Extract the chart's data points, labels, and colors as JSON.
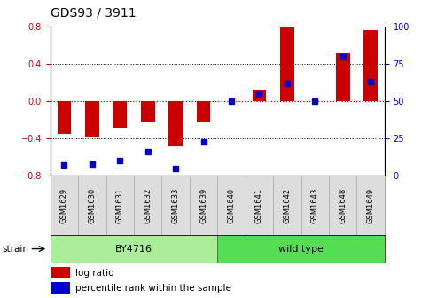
{
  "title": "GDS93 / 3911",
  "samples": [
    "GSM1629",
    "GSM1630",
    "GSM1631",
    "GSM1632",
    "GSM1633",
    "GSM1639",
    "GSM1640",
    "GSM1641",
    "GSM1642",
    "GSM1643",
    "GSM1648",
    "GSM1649"
  ],
  "log_ratio": [
    -0.35,
    -0.38,
    -0.28,
    -0.22,
    -0.48,
    -0.23,
    0.0,
    0.13,
    0.79,
    0.0,
    0.52,
    0.76
  ],
  "percentile_rank": [
    7,
    8,
    10,
    16,
    5,
    23,
    50,
    55,
    62,
    50,
    80,
    63
  ],
  "bar_color": "#cc0000",
  "dot_color": "#0000cc",
  "strain_groups": [
    {
      "label": "BY4716",
      "start": 0,
      "end": 6,
      "color": "#aaee99"
    },
    {
      "label": "wild type",
      "start": 6,
      "end": 12,
      "color": "#55dd55"
    }
  ],
  "ylim_left": [
    -0.8,
    0.8
  ],
  "ylim_right": [
    0,
    100
  ],
  "yticks_left": [
    -0.8,
    -0.4,
    0.0,
    0.4,
    0.8
  ],
  "yticks_right": [
    0,
    25,
    50,
    75,
    100
  ],
  "zero_line_color": "#cc0000",
  "strain_label": "strain"
}
